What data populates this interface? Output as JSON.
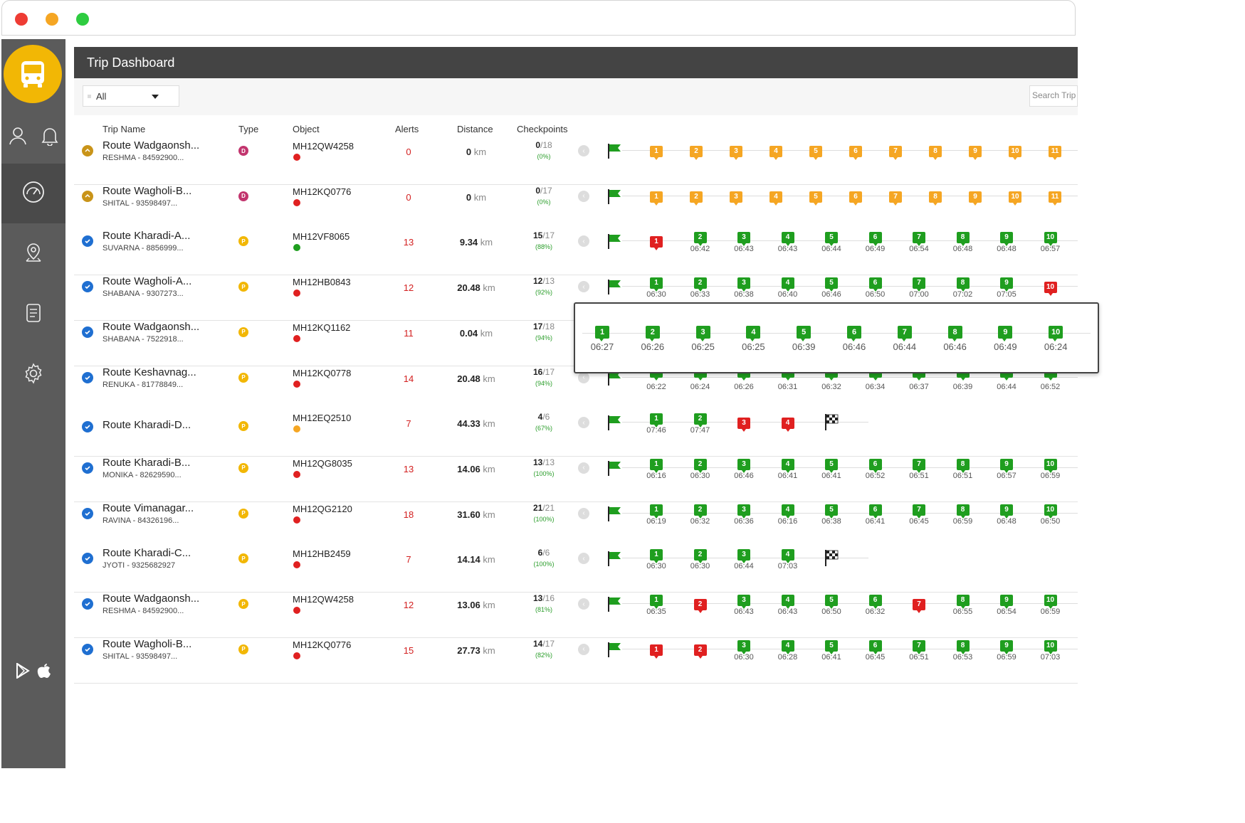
{
  "window": {
    "controls": [
      "close",
      "minimize",
      "maximize"
    ]
  },
  "sidebar": {
    "logo_icon": "bus-icon",
    "top_icons": [
      "user-icon",
      "bell-icon"
    ],
    "nav": [
      {
        "icon": "dashboard-icon",
        "active": true
      },
      {
        "icon": "location-icon",
        "active": false
      },
      {
        "icon": "document-icon",
        "active": false
      },
      {
        "icon": "gear-icon",
        "active": false
      }
    ],
    "bottom_icons": [
      "play-store-icon",
      "apple-icon"
    ]
  },
  "header": {
    "title": "Trip Dashboard"
  },
  "filter": {
    "value": "All"
  },
  "search": {
    "placeholder": "Search Trip"
  },
  "columns": {
    "trip_name": "Trip Name",
    "type": "Type",
    "object": "Object",
    "alerts": "Alerts",
    "distance": "Distance",
    "checkpoints": "Checkpoints"
  },
  "distance_unit": "km",
  "colors": {
    "green": "#1f9e1f",
    "orange": "#f5a623",
    "red": "#e02020",
    "header": "#444444",
    "sidebar": "#5b5b5b",
    "logo": "#f2b705"
  },
  "rows": [
    {
      "name": "Route Wadgaonsh...",
      "driver": "RESHMA - 84592900...",
      "status": "pending",
      "type": "D",
      "object": "MH12QW4258",
      "object_status": "red",
      "alerts": "0",
      "distance": "0",
      "cp_done": "0",
      "cp_total": "/18",
      "cp_pct": "(0%)",
      "checkpoints": [
        {
          "n": "1",
          "c": "o",
          "t": ""
        },
        {
          "n": "2",
          "c": "o",
          "t": ""
        },
        {
          "n": "3",
          "c": "o",
          "t": ""
        },
        {
          "n": "4",
          "c": "o",
          "t": ""
        },
        {
          "n": "5",
          "c": "o",
          "t": ""
        },
        {
          "n": "6",
          "c": "o",
          "t": ""
        },
        {
          "n": "7",
          "c": "o",
          "t": ""
        },
        {
          "n": "8",
          "c": "o",
          "t": ""
        },
        {
          "n": "9",
          "c": "o",
          "t": ""
        },
        {
          "n": "10",
          "c": "o",
          "t": ""
        },
        {
          "n": "11",
          "c": "o",
          "t": ""
        }
      ],
      "end": false
    },
    {
      "name": "Route Wagholi-B...",
      "driver": "SHITAL - 93598497...",
      "status": "pending",
      "type": "D",
      "object": "MH12KQ0776",
      "object_status": "red",
      "alerts": "0",
      "distance": "0",
      "cp_done": "0",
      "cp_total": "/17",
      "cp_pct": "(0%)",
      "checkpoints": [
        {
          "n": "1",
          "c": "o",
          "t": ""
        },
        {
          "n": "2",
          "c": "o",
          "t": ""
        },
        {
          "n": "3",
          "c": "o",
          "t": ""
        },
        {
          "n": "4",
          "c": "o",
          "t": ""
        },
        {
          "n": "5",
          "c": "o",
          "t": ""
        },
        {
          "n": "6",
          "c": "o",
          "t": ""
        },
        {
          "n": "7",
          "c": "o",
          "t": ""
        },
        {
          "n": "8",
          "c": "o",
          "t": ""
        },
        {
          "n": "9",
          "c": "o",
          "t": ""
        },
        {
          "n": "10",
          "c": "o",
          "t": ""
        },
        {
          "n": "11",
          "c": "o",
          "t": ""
        }
      ],
      "end": false
    },
    {
      "name": "Route Kharadi-A...",
      "driver": "SUVARNA - 8856999...",
      "status": "done",
      "type": "P",
      "object": "MH12VF8065",
      "object_status": "green",
      "alerts": "13",
      "distance": "9.34",
      "cp_done": "15",
      "cp_total": "/17",
      "cp_pct": "(88%)",
      "checkpoints": [
        {
          "n": "1",
          "c": "r",
          "t": ""
        },
        {
          "n": "2",
          "c": "g",
          "t": "06:42"
        },
        {
          "n": "3",
          "c": "g",
          "t": "06:43"
        },
        {
          "n": "4",
          "c": "g",
          "t": "06:43"
        },
        {
          "n": "5",
          "c": "g",
          "t": "06:44"
        },
        {
          "n": "6",
          "c": "g",
          "t": "06:49"
        },
        {
          "n": "7",
          "c": "g",
          "t": "06:54"
        },
        {
          "n": "8",
          "c": "g",
          "t": "06:48"
        },
        {
          "n": "9",
          "c": "g",
          "t": "06:48"
        },
        {
          "n": "10",
          "c": "g",
          "t": "06:57"
        }
      ],
      "end": false
    },
    {
      "name": "Route Wagholi-A...",
      "driver": "SHABANA - 9307273...",
      "status": "done",
      "type": "P",
      "object": "MH12HB0843",
      "object_status": "red",
      "alerts": "12",
      "distance": "20.48",
      "cp_done": "12",
      "cp_total": "/13",
      "cp_pct": "(92%)",
      "checkpoints": [
        {
          "n": "1",
          "c": "g",
          "t": "06:30"
        },
        {
          "n": "2",
          "c": "g",
          "t": "06:33"
        },
        {
          "n": "3",
          "c": "g",
          "t": "06:38"
        },
        {
          "n": "4",
          "c": "g",
          "t": "06:40"
        },
        {
          "n": "5",
          "c": "g",
          "t": "06:46"
        },
        {
          "n": "6",
          "c": "g",
          "t": "06:50"
        },
        {
          "n": "7",
          "c": "g",
          "t": "07:00"
        },
        {
          "n": "8",
          "c": "g",
          "t": "07:02"
        },
        {
          "n": "9",
          "c": "g",
          "t": "07:05"
        },
        {
          "n": "10",
          "c": "r",
          "t": ""
        }
      ],
      "end": false
    },
    {
      "name": "Route Wadgaonsh...",
      "driver": "SHABANA - 7522918...",
      "status": "done",
      "type": "P",
      "object": "MH12KQ1162",
      "object_status": "red",
      "alerts": "11",
      "distance": "0.04",
      "cp_done": "17",
      "cp_total": "/18",
      "cp_pct": "(94%)",
      "checkpoints": [],
      "end": false
    },
    {
      "name": "Route Keshavnag...",
      "driver": "RENUKA - 81778849...",
      "status": "done",
      "type": "P",
      "object": "MH12KQ0778",
      "object_status": "red",
      "alerts": "14",
      "distance": "20.48",
      "cp_done": "16",
      "cp_total": "/17",
      "cp_pct": "(94%)",
      "checkpoints": [
        {
          "n": "",
          "c": "g",
          "t": "06:22"
        },
        {
          "n": "",
          "c": "g",
          "t": "06:24"
        },
        {
          "n": "",
          "c": "g",
          "t": "06:26"
        },
        {
          "n": "",
          "c": "g",
          "t": "06:31"
        },
        {
          "n": "",
          "c": "g",
          "t": "06:32"
        },
        {
          "n": "",
          "c": "g",
          "t": "06:34"
        },
        {
          "n": "",
          "c": "g",
          "t": "06:37"
        },
        {
          "n": "",
          "c": "g",
          "t": "06:39"
        },
        {
          "n": "",
          "c": "g",
          "t": "06:44"
        },
        {
          "n": "",
          "c": "g",
          "t": "06:52"
        }
      ],
      "end": false
    },
    {
      "name": "Route Kharadi-D...",
      "driver": "",
      "status": "done",
      "type": "P",
      "object": "MH12EQ2510",
      "object_status": "orange",
      "alerts": "7",
      "distance": "44.33",
      "cp_done": "4",
      "cp_total": "/6",
      "cp_pct": "(67%)",
      "checkpoints": [
        {
          "n": "1",
          "c": "g",
          "t": "07:46"
        },
        {
          "n": "2",
          "c": "g",
          "t": "07:47"
        },
        {
          "n": "3",
          "c": "r",
          "t": ""
        },
        {
          "n": "4",
          "c": "r",
          "t": ""
        }
      ],
      "end": true
    },
    {
      "name": "Route Kharadi-B...",
      "driver": "MONIKA - 82629590...",
      "status": "done",
      "type": "P",
      "object": "MH12QG8035",
      "object_status": "red",
      "alerts": "13",
      "distance": "14.06",
      "cp_done": "13",
      "cp_total": "/13",
      "cp_pct": "(100%)",
      "checkpoints": [
        {
          "n": "1",
          "c": "g",
          "t": "06:16"
        },
        {
          "n": "2",
          "c": "g",
          "t": "06:30"
        },
        {
          "n": "3",
          "c": "g",
          "t": "06:46"
        },
        {
          "n": "4",
          "c": "g",
          "t": "06:41"
        },
        {
          "n": "5",
          "c": "g",
          "t": "06:41"
        },
        {
          "n": "6",
          "c": "g",
          "t": "06:52"
        },
        {
          "n": "7",
          "c": "g",
          "t": "06:51"
        },
        {
          "n": "8",
          "c": "g",
          "t": "06:51"
        },
        {
          "n": "9",
          "c": "g",
          "t": "06:57"
        },
        {
          "n": "10",
          "c": "g",
          "t": "06:59"
        }
      ],
      "end": false
    },
    {
      "name": "Route Vimanagar...",
      "driver": "RAVINA - 84326196...",
      "status": "done",
      "type": "P",
      "object": "MH12QG2120",
      "object_status": "red",
      "alerts": "18",
      "distance": "31.60",
      "cp_done": "21",
      "cp_total": "/21",
      "cp_pct": "(100%)",
      "checkpoints": [
        {
          "n": "1",
          "c": "g",
          "t": "06:19"
        },
        {
          "n": "2",
          "c": "g",
          "t": "06:32"
        },
        {
          "n": "3",
          "c": "g",
          "t": "06:36"
        },
        {
          "n": "4",
          "c": "g",
          "t": "06:16"
        },
        {
          "n": "5",
          "c": "g",
          "t": "06:38"
        },
        {
          "n": "6",
          "c": "g",
          "t": "06:41"
        },
        {
          "n": "7",
          "c": "g",
          "t": "06:45"
        },
        {
          "n": "8",
          "c": "g",
          "t": "06:59"
        },
        {
          "n": "9",
          "c": "g",
          "t": "06:48"
        },
        {
          "n": "10",
          "c": "g",
          "t": "06:50"
        }
      ],
      "end": false
    },
    {
      "name": "Route Kharadi-C...",
      "driver": "JYOTI - 9325682927",
      "status": "done",
      "type": "P",
      "object": "MH12HB2459",
      "object_status": "red",
      "alerts": "7",
      "distance": "14.14",
      "cp_done": "6",
      "cp_total": "/6",
      "cp_pct": "(100%)",
      "checkpoints": [
        {
          "n": "1",
          "c": "g",
          "t": "06:30"
        },
        {
          "n": "2",
          "c": "g",
          "t": "06:30"
        },
        {
          "n": "3",
          "c": "g",
          "t": "06:44"
        },
        {
          "n": "4",
          "c": "g",
          "t": "07:03"
        }
      ],
      "end": true
    },
    {
      "name": "Route Wadgaonsh...",
      "driver": "RESHMA - 84592900...",
      "status": "done",
      "type": "P",
      "object": "MH12QW4258",
      "object_status": "red",
      "alerts": "12",
      "distance": "13.06",
      "cp_done": "13",
      "cp_total": "/16",
      "cp_pct": "(81%)",
      "checkpoints": [
        {
          "n": "1",
          "c": "g",
          "t": "06:35"
        },
        {
          "n": "2",
          "c": "r",
          "t": ""
        },
        {
          "n": "3",
          "c": "g",
          "t": "06:43"
        },
        {
          "n": "4",
          "c": "g",
          "t": "06:43"
        },
        {
          "n": "5",
          "c": "g",
          "t": "06:50"
        },
        {
          "n": "6",
          "c": "g",
          "t": "06:32"
        },
        {
          "n": "7",
          "c": "r",
          "t": ""
        },
        {
          "n": "8",
          "c": "g",
          "t": "06:55"
        },
        {
          "n": "9",
          "c": "g",
          "t": "06:54"
        },
        {
          "n": "10",
          "c": "g",
          "t": "06:59"
        }
      ],
      "end": false
    },
    {
      "name": "Route Wagholi-B...",
      "driver": "SHITAL - 93598497...",
      "status": "done",
      "type": "P",
      "object": "MH12KQ0776",
      "object_status": "red",
      "alerts": "15",
      "distance": "27.73",
      "cp_done": "14",
      "cp_total": "/17",
      "cp_pct": "(82%)",
      "checkpoints": [
        {
          "n": "1",
          "c": "r",
          "t": ""
        },
        {
          "n": "2",
          "c": "r",
          "t": ""
        },
        {
          "n": "3",
          "c": "g",
          "t": "06:30"
        },
        {
          "n": "4",
          "c": "g",
          "t": "06:28"
        },
        {
          "n": "5",
          "c": "g",
          "t": "06:41"
        },
        {
          "n": "6",
          "c": "g",
          "t": "06:45"
        },
        {
          "n": "7",
          "c": "g",
          "t": "06:51"
        },
        {
          "n": "8",
          "c": "g",
          "t": "06:53"
        },
        {
          "n": "9",
          "c": "g",
          "t": "06:59"
        },
        {
          "n": "10",
          "c": "g",
          "t": "07:03"
        }
      ],
      "end": false
    }
  ],
  "popup": {
    "checkpoints": [
      {
        "n": "1",
        "t": "06:27"
      },
      {
        "n": "2",
        "t": "06:26"
      },
      {
        "n": "3",
        "t": "06:25"
      },
      {
        "n": "4",
        "t": "06:25"
      },
      {
        "n": "5",
        "t": "06:39"
      },
      {
        "n": "6",
        "t": "06:46"
      },
      {
        "n": "7",
        "t": "06:44"
      },
      {
        "n": "8",
        "t": "06:46"
      },
      {
        "n": "9",
        "t": "06:49"
      },
      {
        "n": "10",
        "t": "06:24"
      }
    ]
  }
}
